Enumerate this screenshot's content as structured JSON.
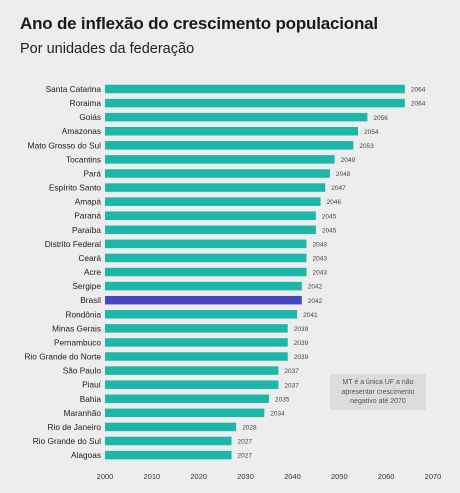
{
  "chart_data": {
    "type": "bar",
    "orientation": "horizontal",
    "title": "Ano de inflexão do crescimento populacional",
    "subtitle": "Por unidades da federação",
    "categories": [
      "Santa Catarina",
      "Roraima",
      "Goiás",
      "Amazonas",
      "Mato Grosso do Sul",
      "Tocantins",
      "Pará",
      "Espírito Santo",
      "Amapá",
      "Paraná",
      "Paraíba",
      "Distrito Federal",
      "Ceará",
      "Acre",
      "Sergipe",
      "Brasil",
      "Rondônia",
      "Minas Gerais",
      "Pernambuco",
      "Rio Grande do Norte",
      "São Paulo",
      "Piauí",
      "Bahia",
      "Maranhão",
      "Rio de Janeiro",
      "Rio Grande do Sul",
      "Alagoas"
    ],
    "values": [
      2064,
      2064,
      2056,
      2054,
      2053,
      2049,
      2048,
      2047,
      2046,
      2045,
      2045,
      2043,
      2043,
      2043,
      2042,
      2042,
      2041,
      2039,
      2039,
      2039,
      2037,
      2037,
      2035,
      2034,
      2028,
      2027,
      2027
    ],
    "highlight": "Brasil",
    "xlim": [
      2000,
      2070
    ],
    "xticks": [
      2000,
      2010,
      2020,
      2030,
      2040,
      2050,
      2060,
      2070
    ],
    "grid": false,
    "colors": {
      "bar": "#1db6a8",
      "highlight": "#4646bd",
      "background": "#ededed"
    },
    "annotation": "MT é a única UF a não apresentar crescimento negativo até 2070"
  }
}
